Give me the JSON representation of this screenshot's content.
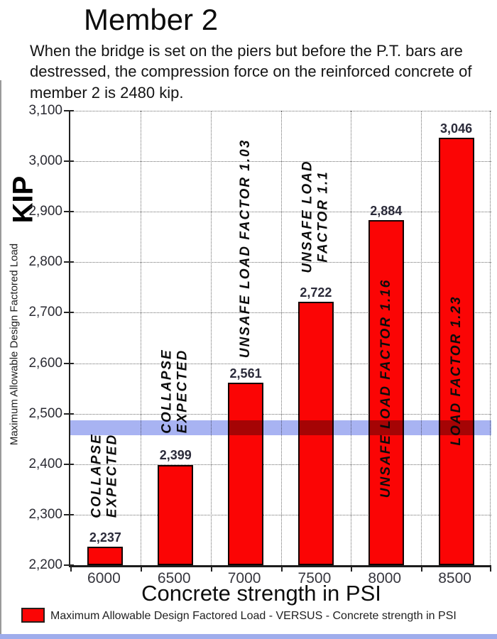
{
  "page": {
    "title": "Member 2",
    "subtitle": "When the bridge is set on the piers but before the P.T. bars are destressed, the compression force on the reinforced concrete of member 2 is 2480 kip."
  },
  "chart_data": {
    "type": "bar",
    "title": "Member 2",
    "xlabel": "Concrete strength in PSI",
    "ylabel": "KIP",
    "ylabel_secondary": "Maximum Allowable Design Factored Load",
    "ylim": [
      2200,
      3100
    ],
    "ytick_step": 100,
    "ytick_labels": [
      "2,200",
      "2,300",
      "2,400",
      "2,500",
      "2,600",
      "2,700",
      "2,800",
      "2,900",
      "3,000",
      "3,100"
    ],
    "categories": [
      "6000",
      "6500",
      "7000",
      "7500",
      "8000",
      "8500"
    ],
    "values": [
      2237,
      2399,
      2561,
      2722,
      2884,
      3046
    ],
    "value_labels": [
      "2,237",
      "2,399",
      "2,561",
      "2,722",
      "2,884",
      "3,046"
    ],
    "bar_color": "#fb0505",
    "bar_border_color": "#160000",
    "grid": "dotted",
    "reference_band": {
      "value": 2480,
      "top_kip": 2487,
      "bottom_kip": 2457,
      "color": "#a8b3f2"
    },
    "annotations": [
      {
        "lines": [
          "COLLAPSE",
          "EXPECTED"
        ],
        "placement": "above",
        "anchor_kip": 2377
      },
      {
        "lines": [
          "COLLAPSE",
          "EXPECTED"
        ],
        "placement": "above",
        "anchor_kip": 2545
      },
      {
        "lines": [
          "UNSAFE LOAD FACTOR 1.03"
        ],
        "placement": "above",
        "anchor_kip": 2827
      },
      {
        "lines": [
          "UNSAFE LOAD",
          "FACTOR 1.1"
        ],
        "placement": "above",
        "anchor_kip": 2890
      },
      {
        "lines": [
          "UNSAFE LOAD FACTOR 1.16"
        ],
        "placement": "inside",
        "anchor_kip": 2550
      },
      {
        "lines": [
          "LOAD FACTOR 1.23"
        ],
        "placement": "inside",
        "anchor_kip": 2585
      }
    ],
    "legend": {
      "label": "Maximum Allowable Design Factored Load - VERSUS - Concrete strength in PSI",
      "swatch_color": "#fb0505"
    }
  }
}
